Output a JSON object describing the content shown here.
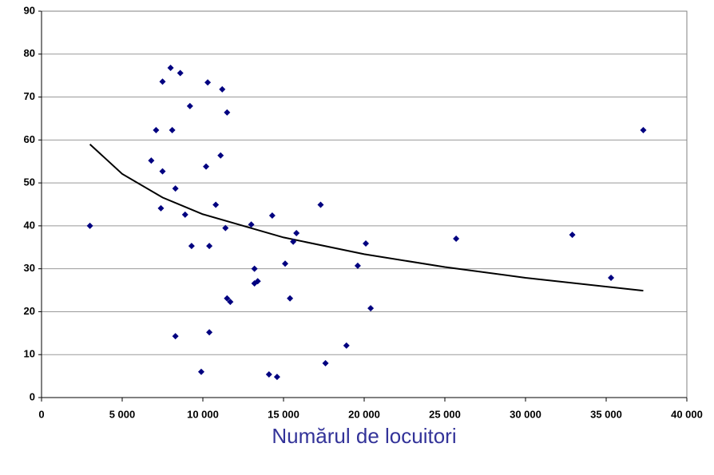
{
  "chart_data": {
    "type": "scatter",
    "x_label": "Numărul de locuitori",
    "series": [
      {
        "color": "#000080",
        "x": [
          3000,
          6800,
          7100,
          7500,
          8000,
          8600,
          8100,
          7500,
          8300,
          7400,
          8900,
          9200,
          9300,
          8300,
          9900,
          10300,
          11200,
          11500,
          10200,
          11100,
          10800,
          11400,
          10400,
          10400,
          11500,
          11700,
          13000,
          13200,
          13200,
          13400,
          14300,
          14100,
          14600,
          15100,
          15600,
          15800,
          15400,
          17300,
          17600,
          18900,
          19600,
          20100,
          20400,
          25700,
          32900,
          35300,
          37300
        ],
        "values": [
          40,
          55.2,
          62.3,
          73.6,
          76.8,
          75.6,
          62.3,
          52.7,
          48.7,
          44.1,
          42.6,
          67.9,
          35.3,
          14.3,
          6,
          73.4,
          71.8,
          66.4,
          53.8,
          56.4,
          44.9,
          39.5,
          35.3,
          15.2,
          23.1,
          22.3,
          40.3,
          30,
          26.6,
          27.1,
          42.4,
          5.4,
          4.8,
          31.2,
          36.3,
          38.3,
          23.1,
          44.9,
          8,
          12.1,
          30.7,
          35.9,
          20.8,
          37,
          37.9,
          27.9,
          62.3
        ]
      }
    ],
    "trendline": {
      "color": "#000000",
      "x": [
        3000,
        5000,
        7500,
        10000,
        15000,
        20000,
        25000,
        30000,
        37300
      ],
      "values": [
        59,
        52.1,
        46.6,
        42.7,
        37.3,
        33.4,
        30.4,
        27.9,
        24.9
      ]
    },
    "xlim": [
      0,
      40000
    ],
    "xticks": [
      0,
      {
        "value": 5000,
        "label": "5 000"
      },
      {
        "value": 10000,
        "label": "10 000"
      },
      {
        "value": 15000,
        "label": "15 000"
      },
      {
        "value": 20000,
        "label": "20 000"
      },
      {
        "value": 25000,
        "label": "25 000"
      },
      {
        "value": 30000,
        "label": "30 000"
      },
      {
        "value": 35000,
        "label": "35 000"
      },
      {
        "value": 40000,
        "label": "40 000"
      }
    ],
    "ylim": [
      0,
      90
    ],
    "yticks": [
      0,
      10,
      20,
      30,
      40,
      50,
      60,
      70,
      80,
      90
    ],
    "grid": true
  }
}
